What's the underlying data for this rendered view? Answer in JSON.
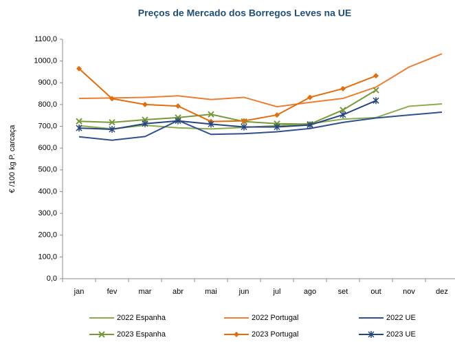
{
  "chart_data": {
    "type": "line",
    "title": "Preços de Mercado dos Borregos Leves na UE",
    "y_label": "€ /100 kg P. carcaça",
    "categories": [
      "jan",
      "fev",
      "mar",
      "abr",
      "mai",
      "jun",
      "jul",
      "ago",
      "set",
      "out",
      "nov",
      "dez"
    ],
    "ylim": [
      0,
      1100
    ],
    "yticks": [
      {
        "value": 0,
        "label": "0,0"
      },
      {
        "value": 100,
        "label": "100,0"
      },
      {
        "value": 200,
        "label": "200,0"
      },
      {
        "value": 300,
        "label": "300,0"
      },
      {
        "value": 400,
        "label": "400,0"
      },
      {
        "value": 500,
        "label": "500,0"
      },
      {
        "value": 600,
        "label": "600,0"
      },
      {
        "value": 700,
        "label": "700,0"
      },
      {
        "value": 800,
        "label": "800,0"
      },
      {
        "value": 900,
        "label": "900,0"
      },
      {
        "value": 1000,
        "label": "1000,0"
      },
      {
        "value": 1100,
        "label": "1100,0"
      }
    ],
    "grid": false,
    "legend": "bottom",
    "series": [
      {
        "name": "2022 Espanha",
        "color": "#8aaa4e",
        "marker": "none",
        "values": [
          703,
          688,
          705,
          693,
          688,
          695,
          703,
          712,
          733,
          740,
          792,
          803
        ]
      },
      {
        "name": "2022 Portugal",
        "color": "#ed7d31",
        "marker": "none",
        "values": [
          828,
          830,
          833,
          840,
          823,
          833,
          790,
          810,
          828,
          880,
          972,
          1033
        ]
      },
      {
        "name": "2022 UE",
        "color": "#2f4f8f",
        "marker": "none",
        "values": [
          652,
          636,
          653,
          727,
          663,
          666,
          675,
          690,
          718,
          738,
          752,
          765
        ]
      },
      {
        "name": "2023 Espanha",
        "color": "#77993a",
        "marker": "x",
        "values": [
          723,
          718,
          730,
          740,
          755,
          722,
          712,
          710,
          775,
          866,
          null,
          null
        ]
      },
      {
        "name": "2023 Portugal",
        "color": "#e46c0a",
        "marker": "diamond",
        "values": [
          965,
          827,
          800,
          793,
          722,
          725,
          752,
          833,
          873,
          932,
          null,
          null
        ]
      },
      {
        "name": "2023 UE",
        "color": "#254580",
        "marker": "star",
        "values": [
          692,
          686,
          712,
          725,
          710,
          697,
          697,
          706,
          753,
          818,
          null,
          null
        ]
      }
    ]
  }
}
